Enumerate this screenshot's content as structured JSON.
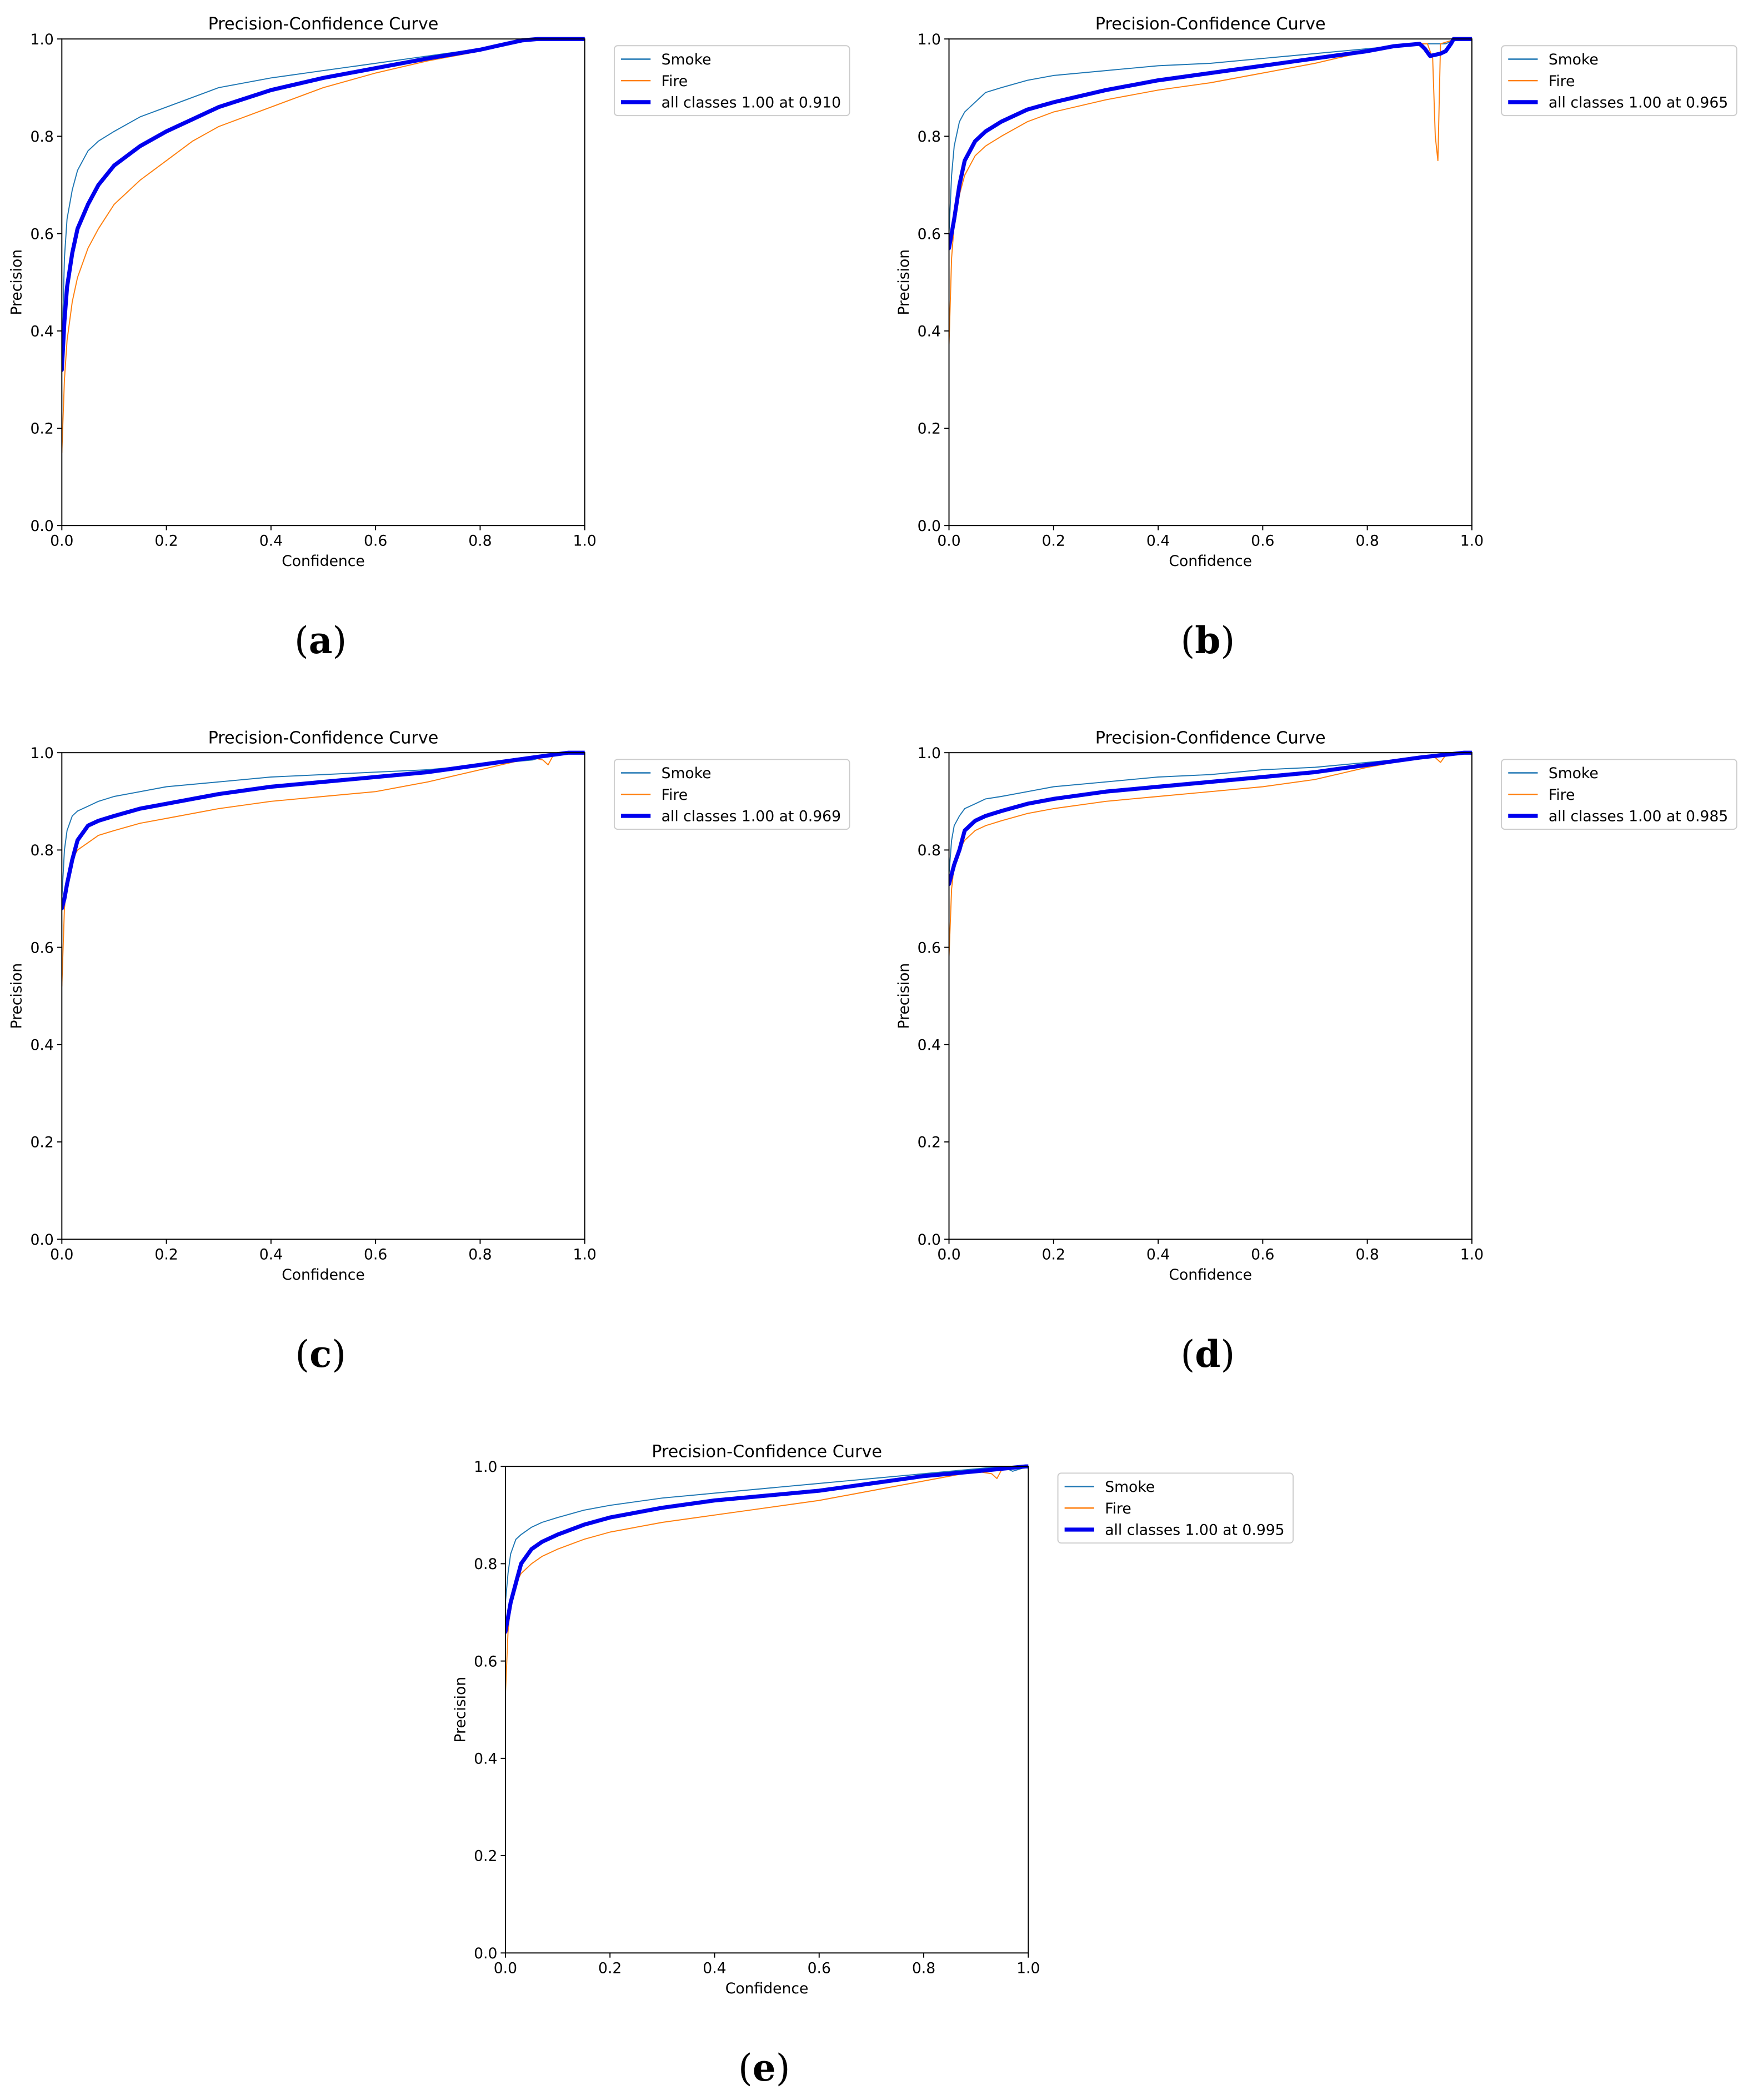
{
  "colors": {
    "smoke": "#1f77b4",
    "fire": "#ff7f0e",
    "all_classes": "#0000ee",
    "axis": "#000000",
    "legend_border": "#cccccc"
  },
  "chart_data": [
    {
      "type": "line",
      "panel": "a",
      "caption": {
        "open": "(",
        "letter": "a",
        "close": ")"
      },
      "title": "Precision-Confidence Curve",
      "xlabel": "Confidence",
      "ylabel": "Precision",
      "xlim": [
        0,
        1
      ],
      "ylim": [
        0,
        1
      ],
      "xticks": [
        "0.0",
        "0.2",
        "0.4",
        "0.6",
        "0.8",
        "1.0"
      ],
      "yticks": [
        "0.0",
        "0.2",
        "0.4",
        "0.6",
        "0.8",
        "1.0"
      ],
      "grid": false,
      "legend_position": "outside-right-top",
      "series": [
        {
          "name": "Smoke",
          "color": "#1f77b4",
          "x": [
            0.0,
            0.005,
            0.01,
            0.02,
            0.03,
            0.05,
            0.07,
            0.1,
            0.15,
            0.2,
            0.25,
            0.3,
            0.4,
            0.5,
            0.6,
            0.7,
            0.8,
            0.85,
            0.88,
            0.91,
            1.0
          ],
          "y": [
            0.34,
            0.55,
            0.63,
            0.69,
            0.73,
            0.77,
            0.79,
            0.81,
            0.84,
            0.86,
            0.88,
            0.9,
            0.92,
            0.935,
            0.95,
            0.965,
            0.98,
            0.99,
            0.997,
            1.0,
            1.0
          ]
        },
        {
          "name": "Fire",
          "color": "#ff7f0e",
          "x": [
            0.0,
            0.005,
            0.01,
            0.02,
            0.03,
            0.05,
            0.07,
            0.1,
            0.15,
            0.2,
            0.25,
            0.3,
            0.4,
            0.5,
            0.6,
            0.7,
            0.8,
            0.85,
            0.88,
            0.91,
            1.0
          ],
          "y": [
            0.15,
            0.3,
            0.38,
            0.46,
            0.51,
            0.57,
            0.61,
            0.66,
            0.71,
            0.75,
            0.79,
            0.82,
            0.86,
            0.9,
            0.93,
            0.955,
            0.975,
            0.99,
            0.997,
            1.0,
            1.0
          ]
        },
        {
          "name": "all classes 1.00 at 0.910",
          "color": "#0000ee",
          "emphasis": true,
          "x": [
            0.0,
            0.005,
            0.01,
            0.02,
            0.03,
            0.05,
            0.07,
            0.1,
            0.15,
            0.2,
            0.25,
            0.3,
            0.4,
            0.5,
            0.6,
            0.7,
            0.8,
            0.85,
            0.88,
            0.91,
            1.0
          ],
          "y": [
            0.32,
            0.42,
            0.49,
            0.56,
            0.61,
            0.66,
            0.7,
            0.74,
            0.78,
            0.81,
            0.835,
            0.86,
            0.895,
            0.92,
            0.94,
            0.96,
            0.978,
            0.99,
            0.997,
            1.0,
            1.0
          ]
        }
      ]
    },
    {
      "type": "line",
      "panel": "b",
      "caption": {
        "open": "(",
        "letter": "b",
        "close": ")"
      },
      "title": "Precision-Confidence Curve",
      "xlabel": "Confidence",
      "ylabel": "Precision",
      "xlim": [
        0,
        1
      ],
      "ylim": [
        0,
        1
      ],
      "xticks": [
        "0.0",
        "0.2",
        "0.4",
        "0.6",
        "0.8",
        "1.0"
      ],
      "yticks": [
        "0.0",
        "0.2",
        "0.4",
        "0.6",
        "0.8",
        "1.0"
      ],
      "grid": false,
      "legend_position": "outside-right-top",
      "series": [
        {
          "name": "Smoke",
          "color": "#1f77b4",
          "x": [
            0.0,
            0.005,
            0.01,
            0.02,
            0.03,
            0.05,
            0.07,
            0.1,
            0.15,
            0.2,
            0.3,
            0.4,
            0.5,
            0.6,
            0.7,
            0.8,
            0.85,
            0.9,
            0.93,
            0.95,
            0.97,
            1.0
          ],
          "y": [
            0.6,
            0.72,
            0.78,
            0.83,
            0.85,
            0.87,
            0.89,
            0.9,
            0.915,
            0.925,
            0.935,
            0.945,
            0.95,
            0.96,
            0.97,
            0.98,
            0.985,
            0.99,
            0.99,
            0.99,
            1.0,
            1.0
          ]
        },
        {
          "name": "Fire",
          "color": "#ff7f0e",
          "x": [
            0.0,
            0.005,
            0.01,
            0.02,
            0.03,
            0.05,
            0.07,
            0.1,
            0.15,
            0.2,
            0.3,
            0.4,
            0.5,
            0.6,
            0.7,
            0.8,
            0.85,
            0.9,
            0.915,
            0.925,
            0.93,
            0.935,
            0.94,
            0.97,
            1.0
          ],
          "y": [
            0.37,
            0.55,
            0.62,
            0.68,
            0.72,
            0.76,
            0.78,
            0.8,
            0.83,
            0.85,
            0.875,
            0.895,
            0.91,
            0.93,
            0.95,
            0.975,
            0.985,
            0.99,
            0.99,
            0.96,
            0.8,
            0.75,
            0.99,
            1.0,
            1.0
          ]
        },
        {
          "name": "all classes 1.00 at 0.965",
          "color": "#0000ee",
          "emphasis": true,
          "x": [
            0.0,
            0.005,
            0.01,
            0.02,
            0.03,
            0.05,
            0.07,
            0.1,
            0.15,
            0.2,
            0.3,
            0.4,
            0.5,
            0.6,
            0.7,
            0.8,
            0.85,
            0.9,
            0.91,
            0.92,
            0.94,
            0.95,
            0.96,
            0.965,
            1.0
          ],
          "y": [
            0.57,
            0.6,
            0.63,
            0.7,
            0.75,
            0.79,
            0.81,
            0.83,
            0.855,
            0.87,
            0.895,
            0.915,
            0.93,
            0.945,
            0.96,
            0.975,
            0.985,
            0.99,
            0.98,
            0.965,
            0.97,
            0.975,
            0.99,
            1.0,
            1.0
          ]
        }
      ]
    },
    {
      "type": "line",
      "panel": "c",
      "caption": {
        "open": "(",
        "letter": "c",
        "close": ")"
      },
      "title": "Precision-Confidence Curve",
      "xlabel": "Confidence",
      "ylabel": "Precision",
      "xlim": [
        0,
        1
      ],
      "ylim": [
        0,
        1
      ],
      "xticks": [
        "0.0",
        "0.2",
        "0.4",
        "0.6",
        "0.8",
        "1.0"
      ],
      "yticks": [
        "0.0",
        "0.2",
        "0.4",
        "0.6",
        "0.8",
        "1.0"
      ],
      "grid": false,
      "legend_position": "outside-right-top",
      "series": [
        {
          "name": "Smoke",
          "color": "#1f77b4",
          "x": [
            0.0,
            0.005,
            0.01,
            0.02,
            0.03,
            0.05,
            0.07,
            0.1,
            0.15,
            0.2,
            0.3,
            0.4,
            0.5,
            0.6,
            0.7,
            0.8,
            0.9,
            0.95,
            1.0
          ],
          "y": [
            0.7,
            0.8,
            0.84,
            0.87,
            0.88,
            0.89,
            0.9,
            0.91,
            0.92,
            0.93,
            0.94,
            0.95,
            0.955,
            0.96,
            0.965,
            0.975,
            0.985,
            1.0,
            1.0
          ]
        },
        {
          "name": "Fire",
          "color": "#ff7f0e",
          "x": [
            0.0,
            0.005,
            0.01,
            0.02,
            0.03,
            0.05,
            0.07,
            0.1,
            0.15,
            0.2,
            0.3,
            0.4,
            0.5,
            0.6,
            0.7,
            0.8,
            0.9,
            0.92,
            0.93,
            0.94,
            0.95,
            1.0
          ],
          "y": [
            0.52,
            0.68,
            0.74,
            0.78,
            0.8,
            0.815,
            0.83,
            0.84,
            0.855,
            0.865,
            0.885,
            0.9,
            0.91,
            0.92,
            0.94,
            0.965,
            0.99,
            0.985,
            0.975,
            0.995,
            1.0,
            1.0
          ]
        },
        {
          "name": "all classes 1.00 at 0.969",
          "color": "#0000ee",
          "emphasis": true,
          "x": [
            0.0,
            0.005,
            0.01,
            0.02,
            0.03,
            0.05,
            0.07,
            0.1,
            0.15,
            0.2,
            0.3,
            0.4,
            0.5,
            0.6,
            0.7,
            0.8,
            0.9,
            0.969,
            1.0
          ],
          "y": [
            0.68,
            0.7,
            0.73,
            0.78,
            0.82,
            0.85,
            0.86,
            0.87,
            0.885,
            0.895,
            0.915,
            0.93,
            0.94,
            0.95,
            0.96,
            0.975,
            0.99,
            1.0,
            1.0
          ]
        }
      ]
    },
    {
      "type": "line",
      "panel": "d",
      "caption": {
        "open": "(",
        "letter": "d",
        "close": ")"
      },
      "title": "Precision-Confidence Curve",
      "xlabel": "Confidence",
      "ylabel": "Precision",
      "xlim": [
        0,
        1
      ],
      "ylim": [
        0,
        1
      ],
      "xticks": [
        "0.0",
        "0.2",
        "0.4",
        "0.6",
        "0.8",
        "1.0"
      ],
      "yticks": [
        "0.0",
        "0.2",
        "0.4",
        "0.6",
        "0.8",
        "1.0"
      ],
      "grid": false,
      "legend_position": "outside-right-top",
      "series": [
        {
          "name": "Smoke",
          "color": "#1f77b4",
          "x": [
            0.0,
            0.005,
            0.01,
            0.02,
            0.03,
            0.05,
            0.07,
            0.1,
            0.15,
            0.2,
            0.3,
            0.4,
            0.5,
            0.6,
            0.7,
            0.8,
            0.9,
            0.95,
            1.0
          ],
          "y": [
            0.75,
            0.82,
            0.85,
            0.87,
            0.885,
            0.895,
            0.905,
            0.91,
            0.92,
            0.93,
            0.94,
            0.95,
            0.955,
            0.965,
            0.97,
            0.98,
            0.99,
            1.0,
            1.0
          ]
        },
        {
          "name": "Fire",
          "color": "#ff7f0e",
          "x": [
            0.0,
            0.005,
            0.01,
            0.02,
            0.03,
            0.05,
            0.07,
            0.1,
            0.15,
            0.2,
            0.3,
            0.4,
            0.5,
            0.6,
            0.7,
            0.8,
            0.9,
            0.93,
            0.94,
            0.95,
            0.96,
            1.0
          ],
          "y": [
            0.58,
            0.72,
            0.77,
            0.8,
            0.82,
            0.84,
            0.85,
            0.86,
            0.875,
            0.885,
            0.9,
            0.91,
            0.92,
            0.93,
            0.945,
            0.97,
            0.99,
            0.99,
            0.98,
            0.995,
            1.0,
            1.0
          ]
        },
        {
          "name": "all classes 1.00 at 0.985",
          "color": "#0000ee",
          "emphasis": true,
          "x": [
            0.0,
            0.005,
            0.01,
            0.02,
            0.03,
            0.05,
            0.07,
            0.1,
            0.15,
            0.2,
            0.3,
            0.4,
            0.5,
            0.6,
            0.7,
            0.8,
            0.9,
            0.985,
            1.0
          ],
          "y": [
            0.73,
            0.75,
            0.77,
            0.8,
            0.84,
            0.86,
            0.87,
            0.88,
            0.895,
            0.905,
            0.92,
            0.93,
            0.94,
            0.95,
            0.96,
            0.975,
            0.99,
            1.0,
            1.0
          ]
        }
      ]
    },
    {
      "type": "line",
      "panel": "e",
      "caption": {
        "open": "(",
        "letter": "e",
        "close": ")"
      },
      "title": "Precision-Confidence Curve",
      "xlabel": "Confidence",
      "ylabel": "Precision",
      "xlim": [
        0,
        1
      ],
      "ylim": [
        0,
        1
      ],
      "xticks": [
        "0.0",
        "0.2",
        "0.4",
        "0.6",
        "0.8",
        "1.0"
      ],
      "yticks": [
        "0.0",
        "0.2",
        "0.4",
        "0.6",
        "0.8",
        "1.0"
      ],
      "grid": false,
      "legend_position": "outside-right-top",
      "series": [
        {
          "name": "Smoke",
          "color": "#1f77b4",
          "x": [
            0.0,
            0.005,
            0.01,
            0.02,
            0.03,
            0.05,
            0.07,
            0.1,
            0.15,
            0.2,
            0.3,
            0.4,
            0.5,
            0.6,
            0.7,
            0.8,
            0.9,
            0.95,
            0.97,
            1.0
          ],
          "y": [
            0.72,
            0.78,
            0.82,
            0.85,
            0.86,
            0.875,
            0.885,
            0.895,
            0.91,
            0.92,
            0.935,
            0.945,
            0.955,
            0.965,
            0.975,
            0.985,
            0.995,
            1.0,
            0.99,
            1.0
          ]
        },
        {
          "name": "Fire",
          "color": "#ff7f0e",
          "x": [
            0.0,
            0.005,
            0.01,
            0.02,
            0.03,
            0.05,
            0.07,
            0.1,
            0.15,
            0.2,
            0.3,
            0.4,
            0.5,
            0.6,
            0.7,
            0.8,
            0.9,
            0.93,
            0.94,
            0.95,
            0.96,
            1.0
          ],
          "y": [
            0.53,
            0.66,
            0.72,
            0.76,
            0.78,
            0.8,
            0.815,
            0.83,
            0.85,
            0.865,
            0.885,
            0.9,
            0.915,
            0.93,
            0.95,
            0.97,
            0.99,
            0.985,
            0.975,
            0.995,
            1.0,
            1.0
          ]
        },
        {
          "name": "all classes 1.00 at 0.995",
          "color": "#0000ee",
          "emphasis": true,
          "x": [
            0.0,
            0.005,
            0.01,
            0.02,
            0.03,
            0.05,
            0.07,
            0.1,
            0.15,
            0.2,
            0.3,
            0.4,
            0.5,
            0.6,
            0.7,
            0.8,
            0.9,
            0.995,
            1.0
          ],
          "y": [
            0.66,
            0.69,
            0.72,
            0.76,
            0.8,
            0.83,
            0.845,
            0.86,
            0.88,
            0.895,
            0.915,
            0.93,
            0.94,
            0.95,
            0.965,
            0.98,
            0.99,
            1.0,
            1.0
          ]
        }
      ]
    }
  ]
}
